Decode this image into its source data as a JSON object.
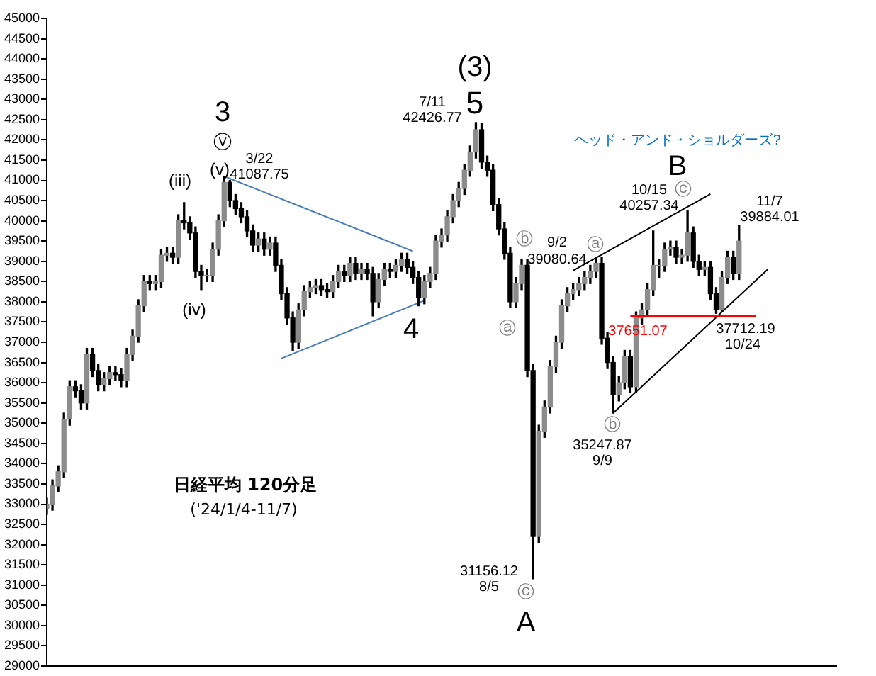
{
  "chart_data": {
    "type": "candlestick",
    "title": "日経平均 120分足",
    "subtitle": "('24/1/4-11/7)",
    "categories": [
      null,
      null,
      null,
      null,
      null,
      null,
      null,
      null,
      null,
      null,
      null,
      null,
      null,
      null,
      null,
      null,
      null,
      null,
      null,
      null,
      null,
      null,
      null,
      null,
      null,
      null,
      null,
      null,
      null,
      null,
      null,
      null,
      null,
      null,
      null,
      null,
      null,
      null,
      null,
      null,
      null,
      null,
      null,
      null,
      null,
      null,
      null,
      null,
      null,
      null,
      null,
      null,
      null,
      null,
      null,
      null,
      null,
      null,
      null,
      null,
      null,
      null,
      null,
      null,
      null,
      null,
      null,
      null,
      null,
      null,
      null,
      null,
      null,
      null,
      null,
      null,
      null,
      null,
      null,
      null,
      null,
      null,
      null,
      null,
      null,
      null,
      null,
      null,
      null,
      null,
      null,
      null,
      null,
      null,
      null,
      null,
      null,
      null,
      null,
      null,
      null,
      null,
      null,
      null,
      null,
      null,
      null,
      null,
      null,
      null,
      null,
      null,
      null,
      null,
      null,
      null,
      null,
      null,
      null,
      null,
      null,
      null,
      null,
      null,
      null,
      null,
      null,
      null,
      null,
      null,
      null,
      null,
      null,
      null,
      null,
      null,
      null,
      null,
      null
    ],
    "ohlc": [
      [
        32900,
        33150,
        32750,
        33000
      ],
      [
        33000,
        33600,
        32850,
        33450
      ],
      [
        33450,
        33950,
        33300,
        33800
      ],
      [
        33800,
        35250,
        33650,
        35100
      ],
      [
        35100,
        36050,
        34950,
        35900
      ],
      [
        35900,
        36050,
        35650,
        35800
      ],
      [
        35800,
        35950,
        35350,
        35500
      ],
      [
        35500,
        36850,
        35350,
        36700
      ],
      [
        36700,
        36850,
        36150,
        36300
      ],
      [
        36300,
        36450,
        35800,
        35950
      ],
      [
        35950,
        36250,
        35800,
        36100
      ],
      [
        36100,
        36400,
        35950,
        36250
      ],
      [
        36250,
        36400,
        36050,
        36200
      ],
      [
        36200,
        36350,
        35900,
        36050
      ],
      [
        36050,
        36850,
        35900,
        36700
      ],
      [
        36700,
        37300,
        36550,
        37150
      ],
      [
        37150,
        38050,
        37000,
        37900
      ],
      [
        37900,
        38650,
        37750,
        38500
      ],
      [
        38500,
        38650,
        38300,
        38450
      ],
      [
        38450,
        38650,
        38300,
        38500
      ],
      [
        38500,
        39300,
        38350,
        39150
      ],
      [
        39150,
        39350,
        39000,
        39200
      ],
      [
        39200,
        39350,
        38950,
        39100
      ],
      [
        39100,
        40150,
        38950,
        40000
      ],
      [
        40000,
        40450,
        39800,
        39950
      ],
      [
        39950,
        40100,
        39550,
        39700
      ],
      [
        39700,
        39850,
        38600,
        38750
      ],
      [
        38750,
        38900,
        38300,
        38650
      ],
      [
        38650,
        38800,
        38500,
        38650
      ],
      [
        38650,
        39450,
        38500,
        39300
      ],
      [
        39300,
        40150,
        39150,
        40000
      ],
      [
        40000,
        41087.75,
        39850,
        40950
      ],
      [
        40950,
        41000,
        40350,
        40500
      ],
      [
        40500,
        40650,
        40150,
        40300
      ],
      [
        40300,
        40450,
        39950,
        40100
      ],
      [
        40100,
        40250,
        39600,
        39750
      ],
      [
        39750,
        39900,
        39250,
        39400
      ],
      [
        39400,
        39700,
        39250,
        39550
      ],
      [
        39550,
        39700,
        39150,
        39300
      ],
      [
        39300,
        39600,
        39150,
        39450
      ],
      [
        39450,
        39600,
        38750,
        38900
      ],
      [
        38900,
        39050,
        38050,
        38200
      ],
      [
        38200,
        38350,
        37450,
        37600
      ],
      [
        37600,
        37750,
        36800,
        37000
      ],
      [
        37000,
        37950,
        36850,
        37800
      ],
      [
        37800,
        38400,
        37650,
        38250
      ],
      [
        38250,
        38500,
        38100,
        38350
      ],
      [
        38350,
        38550,
        38200,
        38400
      ],
      [
        38400,
        38550,
        38150,
        38300
      ],
      [
        38300,
        38450,
        38100,
        38250
      ],
      [
        38250,
        38650,
        38100,
        38500
      ],
      [
        38500,
        38900,
        38350,
        38750
      ],
      [
        38750,
        38900,
        38500,
        38650
      ],
      [
        38650,
        39100,
        38500,
        38950
      ],
      [
        38950,
        39100,
        38550,
        38700
      ],
      [
        38700,
        38950,
        38550,
        38800
      ],
      [
        38800,
        38950,
        38550,
        38700
      ],
      [
        38700,
        38850,
        37650,
        38000
      ],
      [
        38000,
        38700,
        37850,
        38550
      ],
      [
        38550,
        38950,
        38400,
        38800
      ],
      [
        38800,
        38950,
        38600,
        38750
      ],
      [
        38750,
        39050,
        38600,
        38900
      ],
      [
        38900,
        39200,
        38750,
        39050
      ],
      [
        39050,
        39200,
        38700,
        38850
      ],
      [
        38850,
        39000,
        38450,
        38600
      ],
      [
        38600,
        38750,
        37900,
        38100
      ],
      [
        38100,
        38650,
        37950,
        38500
      ],
      [
        38500,
        38850,
        38350,
        38700
      ],
      [
        38700,
        39650,
        38550,
        39500
      ],
      [
        39500,
        39800,
        39350,
        39650
      ],
      [
        39650,
        40250,
        39500,
        40100
      ],
      [
        40100,
        40650,
        39950,
        40500
      ],
      [
        40500,
        40950,
        40350,
        40800
      ],
      [
        40800,
        41400,
        40650,
        41250
      ],
      [
        41250,
        41850,
        41100,
        41700
      ],
      [
        41700,
        42426.77,
        41550,
        42250
      ],
      [
        42250,
        42400,
        41300,
        41450
      ],
      [
        41450,
        41600,
        41100,
        41250
      ],
      [
        41250,
        41400,
        40250,
        40400
      ],
      [
        40400,
        40550,
        39650,
        39800
      ],
      [
        39800,
        39950,
        39050,
        39200
      ],
      [
        39200,
        39350,
        37850,
        38000
      ],
      [
        38000,
        38600,
        37850,
        38450
      ],
      [
        38450,
        39050,
        38300,
        38900
      ],
      [
        38900,
        39050,
        36150,
        36300
      ],
      [
        36300,
        36450,
        31156.12,
        32200
      ],
      [
        32200,
        34950,
        32050,
        34800
      ],
      [
        34800,
        35550,
        34650,
        35400
      ],
      [
        35400,
        36550,
        35250,
        36400
      ],
      [
        36400,
        37150,
        36250,
        37000
      ],
      [
        37000,
        38050,
        36850,
        37900
      ],
      [
        37900,
        38350,
        37750,
        38200
      ],
      [
        38200,
        38450,
        38050,
        38300
      ],
      [
        38300,
        38600,
        38150,
        38450
      ],
      [
        38450,
        38750,
        38300,
        38600
      ],
      [
        38600,
        38900,
        38450,
        38750
      ],
      [
        38750,
        39080.64,
        38600,
        38950
      ],
      [
        38950,
        39100,
        36950,
        37100
      ],
      [
        37100,
        37250,
        36350,
        36500
      ],
      [
        36500,
        36650,
        35247.87,
        35700
      ],
      [
        35700,
        36150,
        35550,
        36000
      ],
      [
        36000,
        36800,
        35850,
        36650
      ],
      [
        36650,
        36800,
        35750,
        35900
      ],
      [
        35900,
        37750,
        35750,
        37600
      ],
      [
        37600,
        37950,
        37450,
        37800
      ],
      [
        37800,
        38450,
        37650,
        38300
      ],
      [
        38300,
        39750,
        38150,
        38900
      ],
      [
        38900,
        39050,
        38600,
        38900
      ],
      [
        38900,
        39450,
        38750,
        39300
      ],
      [
        39300,
        39500,
        39150,
        39350
      ],
      [
        39350,
        39500,
        38950,
        39100
      ],
      [
        39100,
        39300,
        38950,
        39150
      ],
      [
        39150,
        40257.34,
        39000,
        39700
      ],
      [
        39700,
        39850,
        38850,
        39000
      ],
      [
        39000,
        39150,
        38650,
        38800
      ],
      [
        38800,
        39000,
        38650,
        38850
      ],
      [
        38850,
        39000,
        38050,
        38200
      ],
      [
        38200,
        38350,
        37712.19,
        37800
      ],
      [
        37800,
        38750,
        37750,
        38600
      ],
      [
        38600,
        39250,
        38450,
        39100
      ],
      [
        39100,
        39250,
        38550,
        38700
      ],
      [
        38700,
        39884.01,
        38550,
        39500
      ],
      null,
      null,
      null,
      null,
      null,
      null,
      null,
      null,
      null,
      null,
      null,
      null,
      null,
      null,
      null,
      null,
      null
    ],
    "series": [
      {
        "type": "line",
        "color": "#4a7ebb",
        "values": [
          null,
          null,
          null,
          null,
          null,
          null,
          null,
          null,
          null,
          null,
          null,
          null,
          null,
          null,
          null,
          null,
          null,
          null,
          null,
          null,
          null,
          null,
          null,
          null,
          null,
          null,
          null,
          null,
          null,
          null,
          null,
          41100,
          null,
          null,
          null,
          null,
          null,
          null,
          null,
          null,
          null,
          null,
          null,
          null,
          null,
          null,
          null,
          null,
          null,
          null,
          null,
          null,
          null,
          null,
          null,
          null,
          null,
          null,
          null,
          null,
          null,
          null,
          null,
          null,
          39250,
          null,
          null,
          null,
          null,
          null,
          null,
          null,
          null,
          null,
          null,
          null,
          null,
          null,
          null,
          null,
          null,
          null,
          null,
          null,
          null,
          null,
          null,
          null,
          null,
          null,
          null,
          null,
          null,
          null,
          null,
          null,
          null,
          null,
          null,
          null,
          null,
          null,
          null,
          null,
          null,
          null,
          null,
          null,
          null,
          null,
          null,
          null,
          null,
          null,
          null,
          null,
          null,
          null,
          null,
          null,
          null,
          null,
          null,
          null,
          null,
          null,
          null,
          null,
          null,
          null,
          null,
          null,
          null,
          null,
          null,
          null,
          null,
          null,
          null
        ]
      },
      {
        "type": "line",
        "color": "#4a7ebb",
        "values": [
          null,
          null,
          null,
          null,
          null,
          null,
          null,
          null,
          null,
          null,
          null,
          null,
          null,
          null,
          null,
          null,
          null,
          null,
          null,
          null,
          null,
          null,
          null,
          null,
          null,
          null,
          null,
          null,
          null,
          null,
          null,
          null,
          null,
          null,
          null,
          null,
          null,
          null,
          null,
          null,
          null,
          36600,
          null,
          null,
          null,
          null,
          null,
          null,
          null,
          null,
          null,
          null,
          null,
          null,
          null,
          null,
          null,
          null,
          null,
          null,
          null,
          null,
          null,
          null,
          null,
          null,
          38030,
          null,
          null,
          null,
          null,
          null,
          null,
          null,
          null,
          null,
          null,
          null,
          null,
          null,
          null,
          null,
          null,
          null,
          null,
          null,
          null,
          null,
          null,
          null,
          null,
          null,
          null,
          null,
          null,
          null,
          null,
          null,
          null,
          null,
          null,
          null,
          null,
          null,
          null,
          null,
          null,
          null,
          null,
          null,
          null,
          null,
          null,
          null,
          null,
          null,
          null,
          null,
          null,
          null,
          null,
          null,
          null,
          null,
          null,
          null,
          null,
          null,
          null,
          null,
          null,
          null,
          null,
          null,
          null,
          null,
          null,
          null,
          null
        ]
      },
      {
        "type": "line",
        "color": "#000000",
        "values": [
          null,
          null,
          null,
          null,
          null,
          null,
          null,
          null,
          null,
          null,
          null,
          null,
          null,
          null,
          null,
          null,
          null,
          null,
          null,
          null,
          null,
          null,
          null,
          null,
          null,
          null,
          null,
          null,
          null,
          null,
          null,
          null,
          null,
          null,
          null,
          null,
          null,
          null,
          null,
          null,
          null,
          null,
          null,
          null,
          null,
          null,
          null,
          null,
          null,
          null,
          null,
          null,
          null,
          null,
          null,
          null,
          null,
          null,
          null,
          null,
          null,
          null,
          null,
          null,
          null,
          null,
          null,
          null,
          null,
          null,
          null,
          null,
          null,
          null,
          null,
          null,
          null,
          null,
          null,
          null,
          null,
          null,
          null,
          null,
          null,
          null,
          null,
          null,
          null,
          null,
          null,
          null,
          38770,
          null,
          null,
          null,
          null,
          null,
          null,
          null,
          null,
          null,
          null,
          null,
          null,
          null,
          null,
          null,
          null,
          null,
          null,
          null,
          null,
          null,
          null,
          null,
          40660,
          null,
          null,
          null,
          null,
          null,
          null,
          null,
          null,
          null,
          null,
          null,
          null,
          null,
          null,
          null,
          null,
          null,
          null,
          null,
          null,
          null,
          null
        ]
      },
      {
        "type": "line",
        "color": "#000000",
        "values": [
          null,
          null,
          null,
          null,
          null,
          null,
          null,
          null,
          null,
          null,
          null,
          null,
          null,
          null,
          null,
          null,
          null,
          null,
          null,
          null,
          null,
          null,
          null,
          null,
          null,
          null,
          null,
          null,
          null,
          null,
          null,
          null,
          null,
          null,
          null,
          null,
          null,
          null,
          null,
          null,
          null,
          null,
          null,
          null,
          null,
          null,
          null,
          null,
          null,
          null,
          null,
          null,
          null,
          null,
          null,
          null,
          null,
          null,
          null,
          null,
          null,
          null,
          null,
          null,
          null,
          null,
          null,
          null,
          null,
          null,
          null,
          null,
          null,
          null,
          null,
          null,
          null,
          null,
          null,
          null,
          null,
          null,
          null,
          null,
          null,
          null,
          null,
          null,
          null,
          null,
          null,
          null,
          null,
          null,
          null,
          null,
          null,
          null,
          null,
          35250,
          null,
          null,
          null,
          null,
          null,
          null,
          null,
          null,
          null,
          null,
          null,
          null,
          null,
          null,
          null,
          null,
          null,
          null,
          null,
          null,
          null,
          null,
          null,
          null,
          null,
          null,
          38800,
          null,
          null,
          null,
          null,
          null,
          null,
          null,
          null,
          null,
          null,
          null,
          null
        ]
      }
    ],
    "ref_lines": [
      {
        "axis": "y",
        "value": 37651.07,
        "label": "37651.07",
        "color": "#ff0000"
      }
    ],
    "ylim": [
      29000,
      45000
    ],
    "yticks": [
      29000,
      29500,
      30000,
      30500,
      31000,
      31500,
      32000,
      32500,
      33000,
      33500,
      34000,
      34500,
      35000,
      35500,
      36000,
      36500,
      37000,
      37500,
      38000,
      38500,
      39000,
      39500,
      40000,
      40500,
      41000,
      41500,
      42000,
      42500,
      43000,
      43500,
      44000,
      44500,
      45000
    ],
    "tick_labels": "y",
    "annotations": [
      "3",
      "ⓥ",
      "(v)",
      "(iii)",
      "(iv)",
      "3/22",
      "41087.75",
      "7/11",
      "42426.77",
      "(3)",
      "5",
      "4",
      "ⓑ",
      "ⓐ",
      "9/2",
      "39080.64",
      "ⓐ",
      "ⓒ",
      "A",
      "31156.12",
      "8/5",
      "ⓑ",
      "35247.87",
      "9/9",
      "ヘッド・アンド・ショルダーズ?",
      "B",
      "10/15",
      "40257.34",
      "ⓒ",
      "11/7",
      "39884.01",
      "37712.19",
      "10/24"
    ]
  }
}
